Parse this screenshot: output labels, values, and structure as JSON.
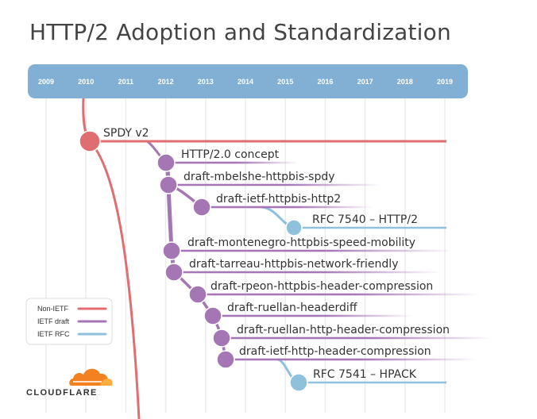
{
  "title": "HTTP/2 Adoption and Standardization",
  "years": [
    "2009",
    "2010",
    "2011",
    "2012",
    "2013",
    "2014",
    "2015",
    "2016",
    "2017",
    "2018",
    "2019"
  ],
  "nodes": [
    {
      "id": "spdy",
      "label": "SPDY v2",
      "category": "non_ietf"
    },
    {
      "id": "concept",
      "label": "HTTP/2.0 concept",
      "category": "ietf_draft"
    },
    {
      "id": "mbelshe",
      "label": "draft-mbelshe-httpbis-spdy",
      "category": "ietf_draft"
    },
    {
      "id": "ietfhttp2",
      "label": "draft-ietf-httpbis-http2",
      "category": "ietf_draft"
    },
    {
      "id": "rfc7540",
      "label": "RFC 7540 – HTTP/2",
      "category": "ietf_rfc"
    },
    {
      "id": "montenegro",
      "label": "draft-montenegro-httpbis-speed-mobility",
      "category": "ietf_draft"
    },
    {
      "id": "tarreau",
      "label": "draft-tarreau-httpbis-network-friendly",
      "category": "ietf_draft"
    },
    {
      "id": "rpeon",
      "label": "draft-rpeon-httpbis-header-compression",
      "category": "ietf_draft"
    },
    {
      "id": "ruellan_hd",
      "label": "draft-ruellan-headerdiff",
      "category": "ietf_draft"
    },
    {
      "id": "ruellan_hhc",
      "label": "draft-ruellan-http-header-compression",
      "category": "ietf_draft"
    },
    {
      "id": "ietf_hhc",
      "label": "draft-ietf-http-header-compression",
      "category": "ietf_draft"
    },
    {
      "id": "rfc7541",
      "label": "RFC 7541 – HPACK",
      "category": "ietf_rfc"
    }
  ],
  "legend": [
    {
      "label": "Non-IETF",
      "category": "non_ietf"
    },
    {
      "label": "IETF draft",
      "category": "ietf_draft"
    },
    {
      "label": "IETF RFC",
      "category": "ietf_rfc"
    }
  ],
  "colors": {
    "non_ietf": "#e06e70",
    "ietf_draft": "#a476b4",
    "ietf_rfc": "#8fc1dd",
    "year_bar": "#82b0d5",
    "grid": "#ececec",
    "logo": "#f48120"
  },
  "logo": {
    "text": "CLOUDFLARE",
    "icon": "cloudflare-cloud-icon"
  }
}
